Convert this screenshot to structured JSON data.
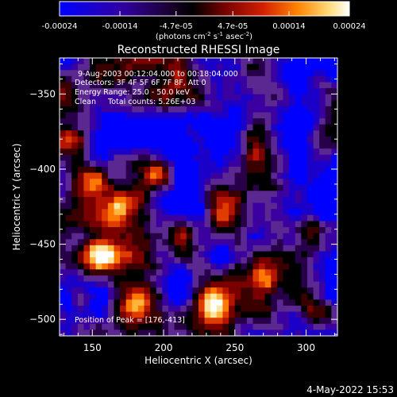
{
  "colorbar": {
    "tick_labels": [
      "-0.00024",
      "-0.00014",
      "-4.7e-05",
      "4.7e-05",
      "0.00014",
      "0.00024"
    ],
    "tick_values": [
      -0.00024,
      -0.00014,
      -4.7e-05,
      4.7e-05,
      0.00014,
      0.00024
    ],
    "range": [
      -0.00024,
      0.00024
    ],
    "unit_prefix": "(photons cm",
    "unit_exp1": "-2",
    "unit_mid": " s",
    "unit_exp2": "-1",
    "unit_mid2": " asec",
    "unit_exp3": "-2",
    "unit_suffix": ")"
  },
  "chart_data": {
    "type": "heatmap",
    "title": "Reconstructed RHESSI Image",
    "xlabel": "Heliocentric X (arcsec)",
    "ylabel": "Heliocentric Y (arcsec)",
    "xlim": [
      127,
      322
    ],
    "ylim": [
      -511,
      -326
    ],
    "x_ticks": [
      150,
      200,
      250,
      300
    ],
    "y_ticks": [
      -350,
      -400,
      -450,
      -500
    ],
    "x_tick_labels": [
      "150",
      "200",
      "250",
      "300"
    ],
    "y_tick_labels": [
      "−350",
      "−400",
      "−450",
      "−500"
    ],
    "annotations": [
      "9-Aug-2003 00:12:04.000 to 00:18:04.000",
      "Detectors: 3F 4F 5F 6F 7F 8F, Att 0",
      "Energy Range: 25.0 - 50.0 keV",
      "Clean     Total counts: 5.26E+03"
    ],
    "peak_label": "Position of Peak = [176,-413]",
    "peak": [
      176,
      -413
    ],
    "colormap": [
      "#0000ff",
      "#1a00c8",
      "#3a00a0",
      "#5a2890",
      "#28004a",
      "#000000",
      "#3a0000",
      "#7a0000",
      "#b41400",
      "#e03c00",
      "#ff7800",
      "#ffb43c",
      "#ffe6a0",
      "#ffffff"
    ]
  },
  "footer": {
    "date": "4-May-2022 15:53"
  }
}
